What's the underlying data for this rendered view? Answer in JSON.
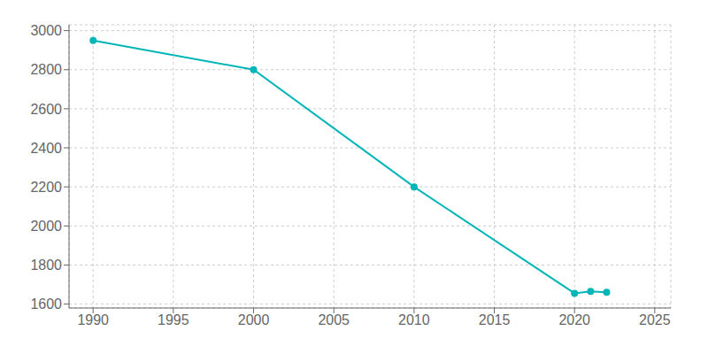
{
  "chart_data": {
    "type": "line",
    "x": [
      1990,
      2000,
      2010,
      2020,
      2021,
      2022
    ],
    "values": [
      2950,
      2800,
      2200,
      1655,
      1665,
      1660
    ],
    "color": "#00b5b8",
    "marker": "circle",
    "xlim": [
      1988.5,
      2026
    ],
    "ylim": [
      1580,
      3030
    ],
    "xticks": [
      1990,
      1995,
      2000,
      2005,
      2010,
      2015,
      2020,
      2025
    ],
    "yticks": [
      1600,
      1800,
      2000,
      2200,
      2400,
      2600,
      2800,
      3000
    ],
    "grid": true
  }
}
